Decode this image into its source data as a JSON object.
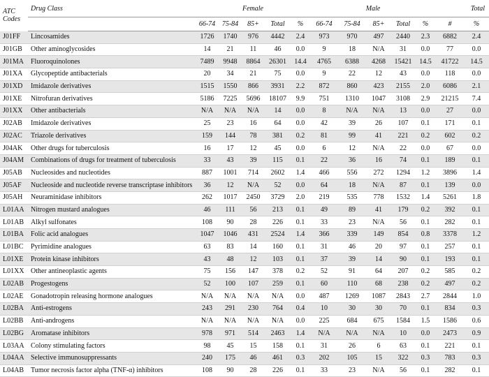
{
  "header": {
    "atc": [
      "ATC",
      "Codes"
    ],
    "drug_class": "Drug Class",
    "groups": [
      "Female",
      "Male",
      "Total"
    ],
    "female_sub": [
      "66-74",
      "75-84",
      "85+",
      "Total",
      "%"
    ],
    "male_sub": [
      "66-74",
      "75-84",
      "85+",
      "Total",
      "%"
    ],
    "total_sub": [
      "#",
      "%"
    ]
  },
  "rows": [
    {
      "code": "J01FF",
      "class": "Lincosamides",
      "cells": [
        "1726",
        "1740",
        "976",
        "4442",
        "2.4",
        "973",
        "970",
        "497",
        "2440",
        "2.3",
        "6882",
        "2.4"
      ]
    },
    {
      "code": "J01GB",
      "class": "Other aminoglycosides",
      "cells": [
        "14",
        "21",
        "11",
        "46",
        "0.0",
        "9",
        "18",
        "N/A",
        "31",
        "0.0",
        "77",
        "0.0"
      ]
    },
    {
      "code": "J01MA",
      "class": "Fluoroquinolones",
      "cells": [
        "7489",
        "9948",
        "8864",
        "26301",
        "14.4",
        "4765",
        "6388",
        "4268",
        "15421",
        "14.5",
        "41722",
        "14.5"
      ]
    },
    {
      "code": "J01XA",
      "class": "Glycopeptide antibacterials",
      "cells": [
        "20",
        "34",
        "21",
        "75",
        "0.0",
        "9",
        "22",
        "12",
        "43",
        "0.0",
        "118",
        "0.0"
      ]
    },
    {
      "code": "J01XD",
      "class": "Imidazole derivatives",
      "cells": [
        "1515",
        "1550",
        "866",
        "3931",
        "2.2",
        "872",
        "860",
        "423",
        "2155",
        "2.0",
        "6086",
        "2.1"
      ]
    },
    {
      "code": "J01XE",
      "class": "Nitrofuran derivatives",
      "cells": [
        "5186",
        "7225",
        "5696",
        "18107",
        "9.9",
        "751",
        "1310",
        "1047",
        "3108",
        "2.9",
        "21215",
        "7.4"
      ]
    },
    {
      "code": "J01XX",
      "class": "Other antibacterials",
      "cells": [
        "N/A",
        "N/A",
        "N/A",
        "14",
        "0.0",
        "8",
        "N/A",
        "N/A",
        "13",
        "0.0",
        "27",
        "0.0"
      ]
    },
    {
      "code": "J02AB",
      "class": "Imidazole derivatives",
      "cells": [
        "25",
        "23",
        "16",
        "64",
        "0.0",
        "42",
        "39",
        "26",
        "107",
        "0.1",
        "171",
        "0.1"
      ]
    },
    {
      "code": "J02AC",
      "class": "Triazole derivatives",
      "cells": [
        "159",
        "144",
        "78",
        "381",
        "0.2",
        "81",
        "99",
        "41",
        "221",
        "0.2",
        "602",
        "0.2"
      ]
    },
    {
      "code": "J04AK",
      "class": "Other drugs for tuberculosis",
      "cells": [
        "16",
        "17",
        "12",
        "45",
        "0.0",
        "6",
        "12",
        "N/A",
        "22",
        "0.0",
        "67",
        "0.0"
      ]
    },
    {
      "code": "J04AM",
      "class": "Combinations of drugs for treatment of tuberculosis",
      "cells": [
        "33",
        "43",
        "39",
        "115",
        "0.1",
        "22",
        "36",
        "16",
        "74",
        "0.1",
        "189",
        "0.1"
      ]
    },
    {
      "code": "J05AB",
      "class": "Nucleosides and nucleotides",
      "cells": [
        "887",
        "1001",
        "714",
        "2602",
        "1.4",
        "466",
        "556",
        "272",
        "1294",
        "1.2",
        "3896",
        "1.4"
      ]
    },
    {
      "code": "J05AF",
      "class": "Nucleoside and nucleotide reverse transcriptase inhibitors",
      "cells": [
        "36",
        "12",
        "N/A",
        "52",
        "0.0",
        "64",
        "18",
        "N/A",
        "87",
        "0.1",
        "139",
        "0.0"
      ]
    },
    {
      "code": "J05AH",
      "class": "Neuraminidase inhibitors",
      "cells": [
        "262",
        "1017",
        "2450",
        "3729",
        "2.0",
        "219",
        "535",
        "778",
        "1532",
        "1.4",
        "5261",
        "1.8"
      ]
    },
    {
      "code": "L01AA",
      "class": "Nitrogen mustard analogues",
      "cells": [
        "46",
        "111",
        "56",
        "213",
        "0.1",
        "49",
        "89",
        "41",
        "179",
        "0.2",
        "392",
        "0.1"
      ]
    },
    {
      "code": "L01AB",
      "class": "Alkyl sulfonates",
      "cells": [
        "108",
        "90",
        "28",
        "226",
        "0.1",
        "33",
        "23",
        "N/A",
        "56",
        "0.1",
        "282",
        "0.1"
      ]
    },
    {
      "code": "L01BA",
      "class": "Folic acid analogues",
      "cells": [
        "1047",
        "1046",
        "431",
        "2524",
        "1.4",
        "366",
        "339",
        "149",
        "854",
        "0.8",
        "3378",
        "1.2"
      ]
    },
    {
      "code": "L01BC",
      "class": "Pyrimidine analogues",
      "cells": [
        "63",
        "83",
        "14",
        "160",
        "0.1",
        "31",
        "46",
        "20",
        "97",
        "0.1",
        "257",
        "0.1"
      ]
    },
    {
      "code": "L01XE",
      "class": "Protein kinase inhibitors",
      "cells": [
        "43",
        "48",
        "12",
        "103",
        "0.1",
        "37",
        "39",
        "14",
        "90",
        "0.1",
        "193",
        "0.1"
      ]
    },
    {
      "code": "L01XX",
      "class": "Other antineoplastic agents",
      "cells": [
        "75",
        "156",
        "147",
        "378",
        "0.2",
        "52",
        "91",
        "64",
        "207",
        "0.2",
        "585",
        "0.2"
      ]
    },
    {
      "code": "L02AB",
      "class": "Progestogens",
      "cells": [
        "52",
        "100",
        "107",
        "259",
        "0.1",
        "60",
        "110",
        "68",
        "238",
        "0.2",
        "497",
        "0.2"
      ]
    },
    {
      "code": "L02AE",
      "class": "Gonadotropin releasing hormone analogues",
      "cells": [
        "N/A",
        "N/A",
        "N/A",
        "N/A",
        "0.0",
        "487",
        "1269",
        "1087",
        "2843",
        "2.7",
        "2844",
        "1.0"
      ]
    },
    {
      "code": "L02BA",
      "class": "Anti-estrogens",
      "cells": [
        "243",
        "291",
        "230",
        "764",
        "0.4",
        "10",
        "30",
        "30",
        "70",
        "0.1",
        "834",
        "0.3"
      ]
    },
    {
      "code": "L02BB",
      "class": "Anti-androgens",
      "cells": [
        "N/A",
        "N/A",
        "N/A",
        "N/A",
        "0.0",
        "225",
        "684",
        "675",
        "1584",
        "1.5",
        "1586",
        "0.6"
      ]
    },
    {
      "code": "L02BG",
      "class": "Aromatase inhibitors",
      "cells": [
        "978",
        "971",
        "514",
        "2463",
        "1.4",
        "N/A",
        "N/A",
        "N/A",
        "10",
        "0.0",
        "2473",
        "0.9"
      ]
    },
    {
      "code": "L03AA",
      "class": "Colony stimulating factors",
      "cells": [
        "98",
        "45",
        "15",
        "158",
        "0.1",
        "31",
        "26",
        "6",
        "63",
        "0.1",
        "221",
        "0.1"
      ]
    },
    {
      "code": "L04AA",
      "class": "Selective immunosuppressants",
      "cells": [
        "240",
        "175",
        "46",
        "461",
        "0.3",
        "202",
        "105",
        "15",
        "322",
        "0.3",
        "783",
        "0.3"
      ]
    },
    {
      "code": "L04AB",
      "class": "Tumor necrosis factor alpha (TNF-α) inhibitors",
      "cells": [
        "108",
        "90",
        "28",
        "226",
        "0.1",
        "33",
        "23",
        "N/A",
        "56",
        "0.1",
        "282",
        "0.1"
      ]
    }
  ]
}
